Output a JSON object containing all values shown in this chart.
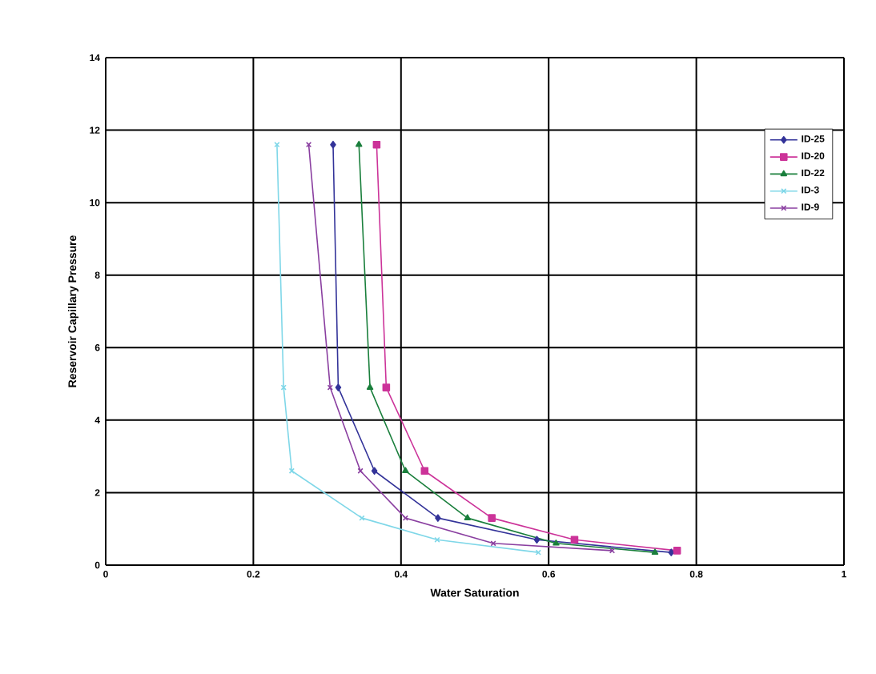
{
  "chart_data": {
    "type": "line",
    "xlabel": "Water Saturation",
    "ylabel": "Reservoir Capillary Pressure",
    "xlim": [
      0,
      1
    ],
    "xticks": [
      0,
      0.2,
      0.4,
      0.6,
      0.8,
      1
    ],
    "ylim": [
      0,
      14
    ],
    "yticks": [
      0,
      2,
      4,
      6,
      8,
      10,
      12,
      14
    ],
    "grid": true,
    "legend": "right",
    "line_style": "solid",
    "series": [
      {
        "name": "ID-25",
        "color": "#333399",
        "marker": "diamond",
        "x": [
          0.308,
          0.315,
          0.364,
          0.45,
          0.584,
          0.766
        ],
        "values": [
          11.6,
          4.9,
          2.6,
          1.3,
          0.7,
          0.35
        ]
      },
      {
        "name": "ID-20",
        "color": "#cc3399",
        "marker": "square",
        "x": [
          0.367,
          0.38,
          0.432,
          0.523,
          0.635,
          0.774
        ],
        "values": [
          11.6,
          4.9,
          2.6,
          1.3,
          0.7,
          0.4
        ]
      },
      {
        "name": "ID-22",
        "color": "#1a7f3c",
        "marker": "triangle",
        "x": [
          0.343,
          0.358,
          0.406,
          0.49,
          0.61,
          0.744
        ],
        "values": [
          11.6,
          4.9,
          2.6,
          1.3,
          0.6,
          0.35
        ]
      },
      {
        "name": "ID-3",
        "color": "#7fd7e8",
        "marker": "cross",
        "x": [
          0.232,
          0.241,
          0.252,
          0.347,
          0.449,
          0.586
        ],
        "values": [
          11.6,
          4.9,
          2.6,
          1.3,
          0.7,
          0.35
        ]
      },
      {
        "name": "ID-9",
        "color": "#8a3fa0",
        "marker": "cross",
        "x": [
          0.275,
          0.304,
          0.345,
          0.406,
          0.525,
          0.686
        ],
        "values": [
          11.6,
          4.9,
          2.6,
          1.3,
          0.6,
          0.4
        ]
      }
    ]
  }
}
